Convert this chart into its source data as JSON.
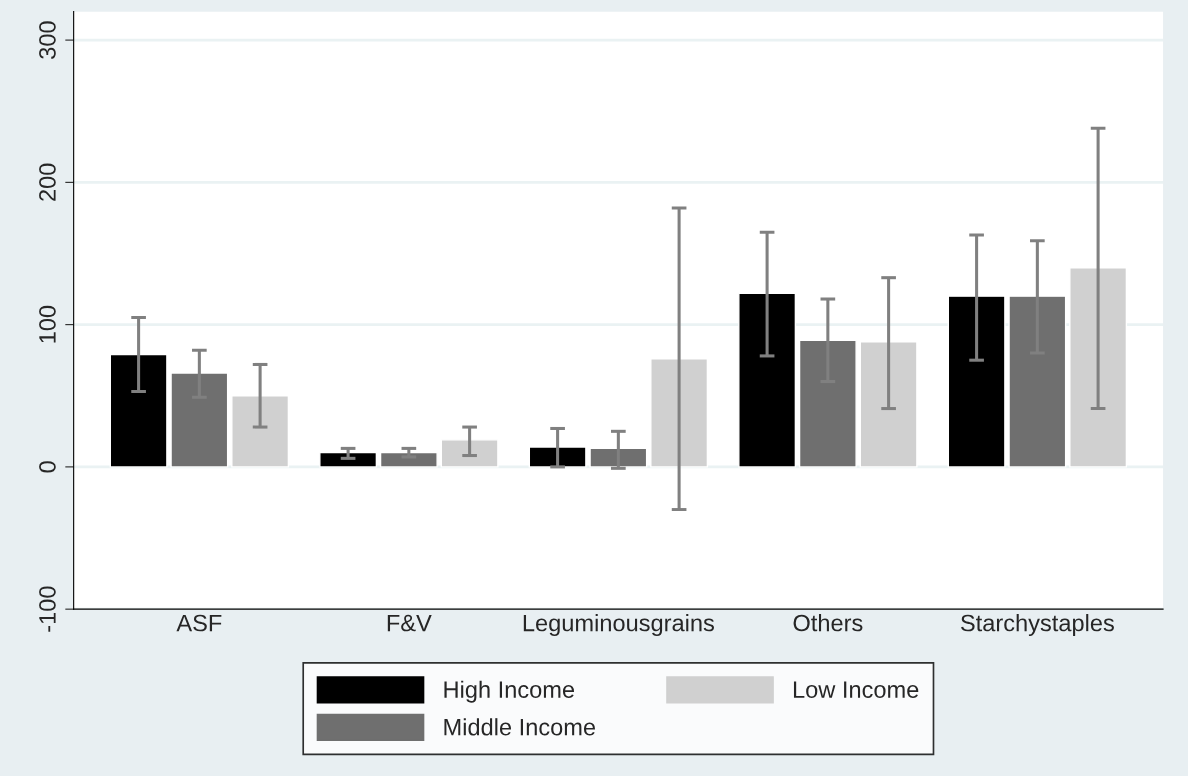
{
  "chart_data": {
    "type": "bar",
    "categories": [
      "ASF",
      "F&V",
      "Leguminousgrains",
      "Others",
      "Starchystaples"
    ],
    "series": [
      {
        "name": "High Income",
        "color": "#000000",
        "values": [
          79,
          10,
          14,
          122,
          120
        ],
        "errors": [
          [
            53,
            105
          ],
          [
            6,
            13
          ],
          [
            0,
            27
          ],
          [
            78,
            165
          ],
          [
            75,
            163
          ]
        ]
      },
      {
        "name": "Middle Income",
        "color": "#6f6f6f",
        "values": [
          66,
          10,
          13,
          89,
          120
        ],
        "errors": [
          [
            49,
            82
          ],
          [
            7,
            13
          ],
          [
            -1,
            25
          ],
          [
            60,
            118
          ],
          [
            80,
            159
          ]
        ]
      },
      {
        "name": "Low Income",
        "color": "#d0d0d0",
        "values": [
          50,
          19,
          76,
          88,
          140
        ],
        "errors": [
          [
            28,
            72
          ],
          [
            8,
            28
          ],
          [
            -30,
            182
          ],
          [
            41,
            133
          ],
          [
            41,
            238
          ]
        ]
      }
    ],
    "ylim": [
      -100,
      320
    ],
    "yticks": [
      -100,
      0,
      100,
      200,
      300
    ],
    "grid": "y",
    "legend": "bottom"
  }
}
